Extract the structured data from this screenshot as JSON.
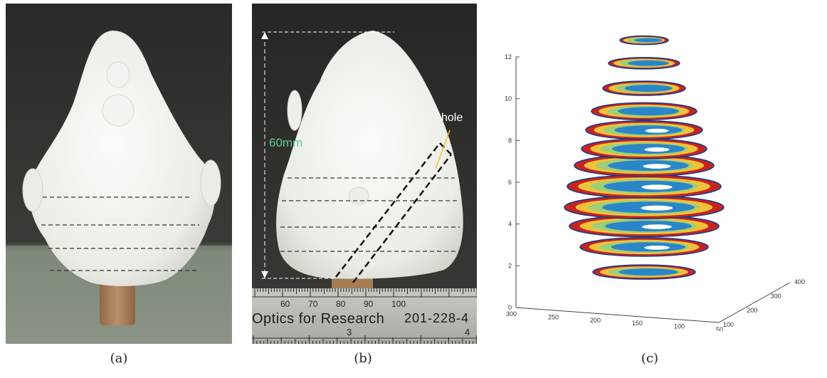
{
  "captions": {
    "a": "(a)",
    "b": "(b)",
    "c": "(c)"
  },
  "panel_b": {
    "height_label": "60mm",
    "hole_label": "hole",
    "ruler": {
      "brand": "Optics for Research",
      "phone": "201-228-4",
      "top_numbers": [
        "60",
        "70",
        "80",
        "90",
        "100"
      ],
      "bottom_numbers": [
        "3",
        "4"
      ]
    }
  },
  "colors": {
    "height_label": "#5bd08a",
    "hole_leader": "#f0c030"
  },
  "chart_data": {
    "type": "scatter",
    "description_kind": "3D stacked slice reconstruction",
    "z_ticks": [
      0,
      2,
      4,
      6,
      8,
      10,
      12
    ],
    "x_ticks": [
      300,
      250,
      200,
      150,
      100,
      50
    ],
    "y_ticks": [
      100,
      200,
      300,
      400
    ],
    "zlim": [
      0,
      12
    ],
    "slices": [
      {
        "z": 1.7,
        "rx": 72,
        "ry": 10
      },
      {
        "z": 2.9,
        "rx": 90,
        "ry": 13
      },
      {
        "z": 3.9,
        "rx": 105,
        "ry": 15
      },
      {
        "z": 4.8,
        "rx": 112,
        "ry": 16
      },
      {
        "z": 5.8,
        "rx": 108,
        "ry": 16
      },
      {
        "z": 6.8,
        "rx": 98,
        "ry": 15
      },
      {
        "z": 7.6,
        "rx": 88,
        "ry": 14
      },
      {
        "z": 8.5,
        "rx": 82,
        "ry": 13
      },
      {
        "z": 9.4,
        "rx": 74,
        "ry": 12
      },
      {
        "z": 10.5,
        "rx": 58,
        "ry": 10
      },
      {
        "z": 11.7,
        "rx": 50,
        "ry": 8
      },
      {
        "z": 12.8,
        "rx": 34,
        "ry": 6
      }
    ],
    "grid": false
  }
}
